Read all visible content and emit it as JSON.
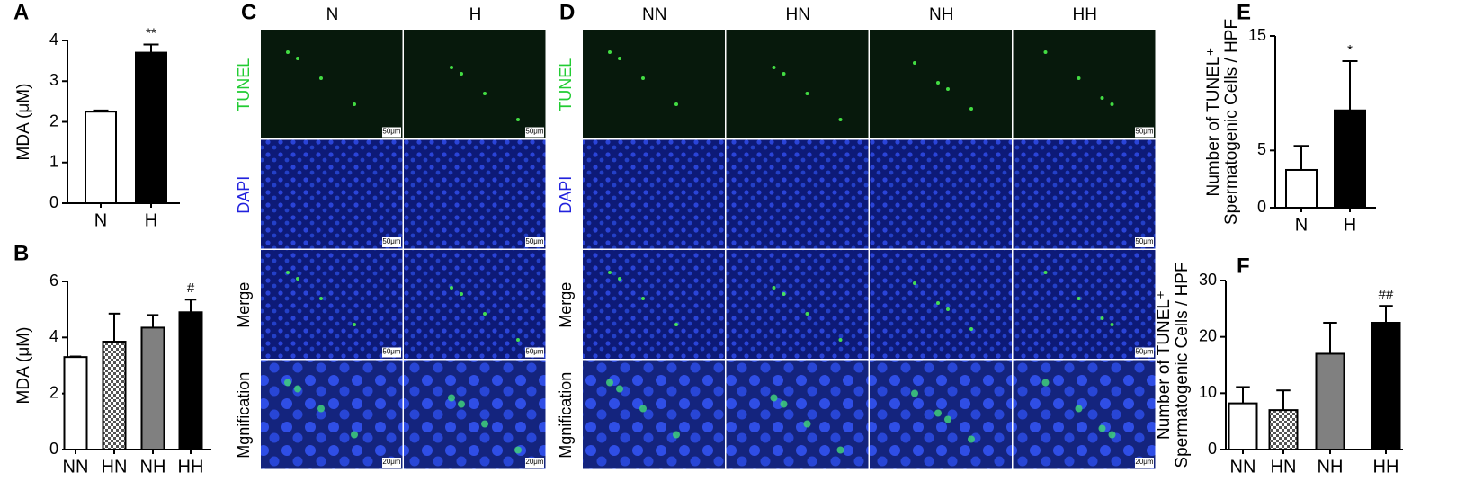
{
  "chart_data": [
    {
      "type": "bar",
      "panel": "A",
      "y_label": [
        "MDA (μM)"
      ],
      "categories": [
        "N",
        "H"
      ],
      "values": [
        2.25,
        3.7
      ],
      "errors": [
        0.03,
        0.2
      ],
      "colors": [
        "#ffffff",
        "#000000"
      ],
      "hatch": [
        false,
        false
      ],
      "annotations": [
        null,
        "**"
      ],
      "ylim": [
        0,
        4
      ],
      "yticks": [
        0,
        1,
        2,
        3,
        4
      ]
    },
    {
      "type": "bar",
      "panel": "B",
      "y_label": [
        "MDA (μM)"
      ],
      "categories": [
        "NN",
        "HN",
        "NH",
        "HH"
      ],
      "values": [
        3.3,
        3.85,
        4.35,
        4.9
      ],
      "errors": [
        0.02,
        1.0,
        0.45,
        0.45
      ],
      "colors": [
        "#ffffff",
        "#ffffff",
        "#808080",
        "#000000"
      ],
      "hatch": [
        false,
        true,
        false,
        false
      ],
      "annotations": [
        null,
        null,
        null,
        "#"
      ],
      "ylim": [
        0,
        6
      ],
      "yticks": [
        0,
        2,
        4,
        6
      ]
    },
    {
      "type": "bar",
      "panel": "E",
      "y_label": [
        "Number of TUNEL⁺",
        "Spermatogenic Cells / HPF"
      ],
      "categories": [
        "N",
        "H"
      ],
      "values": [
        3.3,
        8.5
      ],
      "errors": [
        2.1,
        4.3
      ],
      "colors": [
        "#ffffff",
        "#000000"
      ],
      "hatch": [
        false,
        false
      ],
      "annotations": [
        null,
        "*"
      ],
      "ylim": [
        0,
        15
      ],
      "yticks": [
        0,
        5,
        15
      ]
    },
    {
      "type": "bar",
      "panel": "F",
      "y_label": [
        "Number of TUNEL⁺",
        "Spermatogenic Cells / HPF"
      ],
      "categories": [
        "NN",
        "HN",
        "NH",
        "HH"
      ],
      "values": [
        8.2,
        7.0,
        17.0,
        22.5
      ],
      "errors": [
        2.9,
        3.5,
        5.5,
        3.0
      ],
      "colors": [
        "#ffffff",
        "#ffffff",
        "#808080",
        "#000000"
      ],
      "hatch": [
        false,
        true,
        false,
        false
      ],
      "annotations": [
        null,
        null,
        null,
        "##"
      ],
      "ylim": [
        0,
        30
      ],
      "yticks": [
        0,
        10,
        20,
        30
      ]
    }
  ],
  "panels": [
    {
      "label": "C",
      "columns": [
        "N",
        "H"
      ],
      "rows": [
        "TUNEL",
        "DAPI",
        "Merge",
        "Mgnification"
      ],
      "scale_bars": [
        "50μm",
        "50μm",
        "50μm",
        "20μm"
      ]
    },
    {
      "label": "D",
      "columns": [
        "NN",
        "HN",
        "NH",
        "HH"
      ],
      "rows": [
        "TUNEL",
        "DAPI",
        "Merge",
        "Mgnification"
      ],
      "scale_bars": [
        "50μm",
        "50μm",
        "50μm",
        "20μm"
      ]
    }
  ]
}
